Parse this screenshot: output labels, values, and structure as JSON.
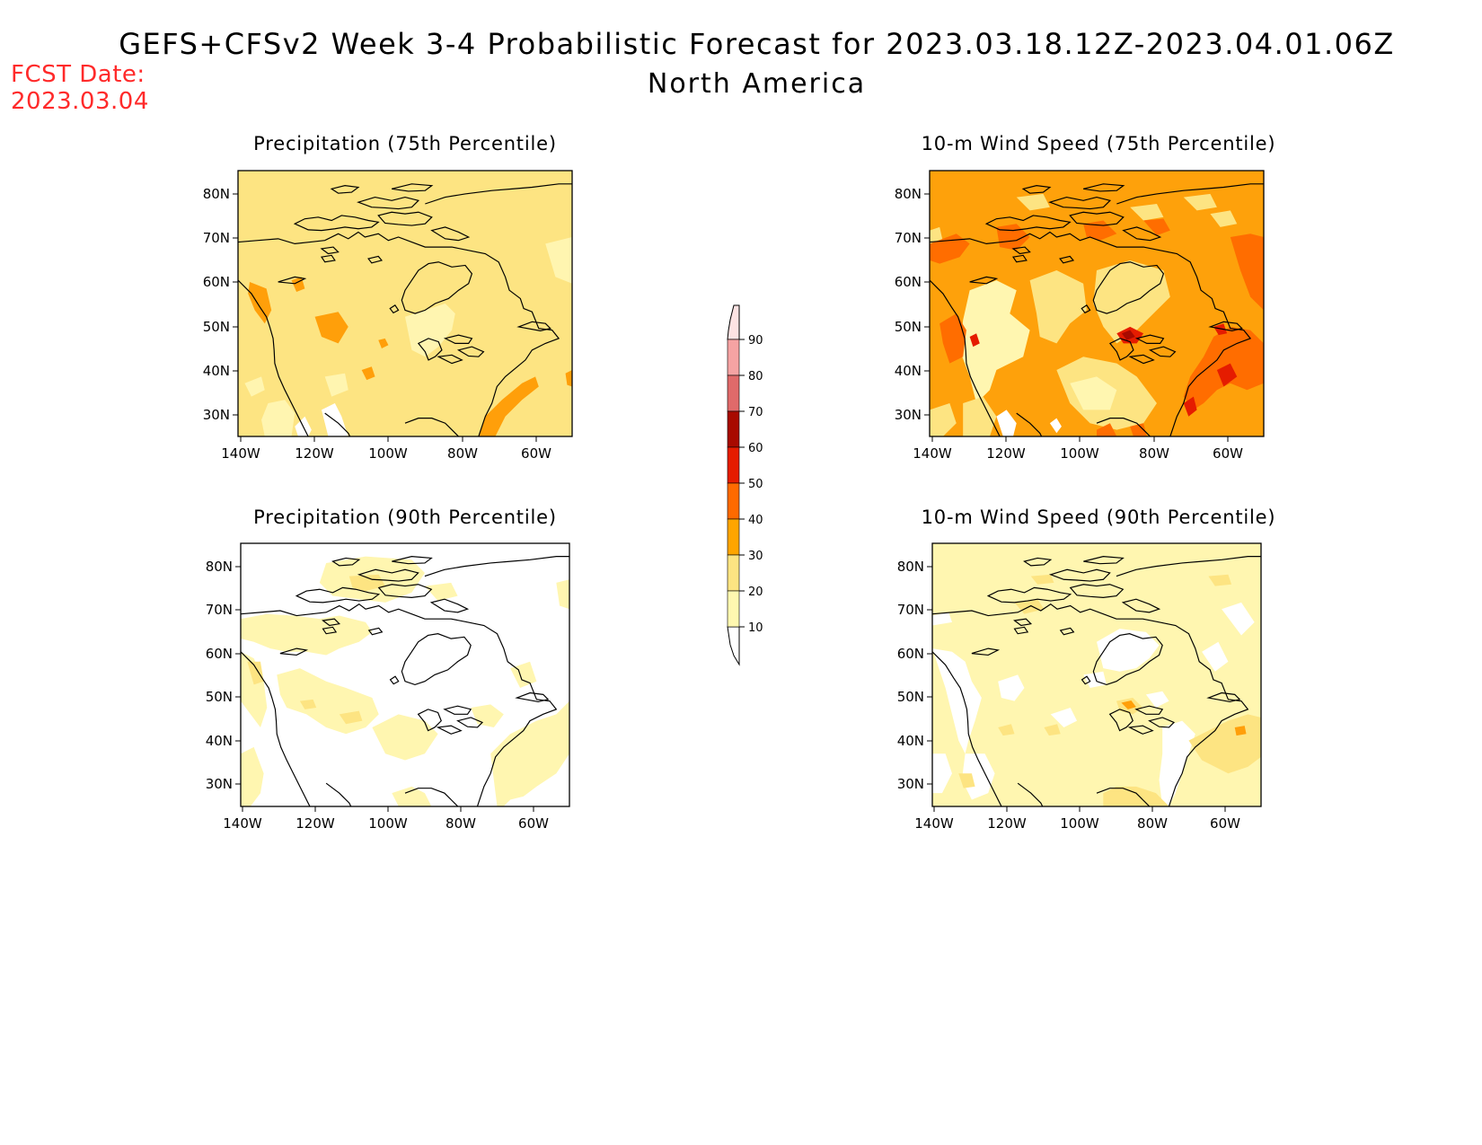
{
  "title": "GEFS+CFSv2 Week 3-4 Probabilistic Forecast for 2023.03.18.12Z-2023.04.01.06Z",
  "subtitle": "North America",
  "fcst_date": {
    "label": "FCST Date:",
    "value": "2023.03.04"
  },
  "lat_ticks": [
    "80N",
    "70N",
    "60N",
    "50N",
    "40N",
    "30N"
  ],
  "lon_ticks": [
    "140W",
    "120W",
    "100W",
    "80W",
    "60W"
  ],
  "panels": [
    {
      "id": "precip75",
      "title": "Precipitation (75th Percentile)",
      "base": "#fde482"
    },
    {
      "id": "wind75",
      "title": "10-m Wind Speed (75th Percentile)",
      "base": "#fea10b"
    },
    {
      "id": "precip90",
      "title": "Precipitation (90th Percentile)",
      "base": "#ffffff"
    },
    {
      "id": "wind90",
      "title": "10-m Wind Speed (90th Percentile)",
      "base": "#fff6b0"
    }
  ],
  "colorbar": {
    "labels": [
      "90",
      "80",
      "70",
      "60",
      "50",
      "40",
      "30",
      "20",
      "10"
    ],
    "colors": [
      "#f5a3a3",
      "#e06a6a",
      "#a80a00",
      "#e51c00",
      "#ff6a00",
      "#ffa500",
      "#fde482",
      "#fff8b0"
    ],
    "top_color": "#fde3e3"
  }
}
